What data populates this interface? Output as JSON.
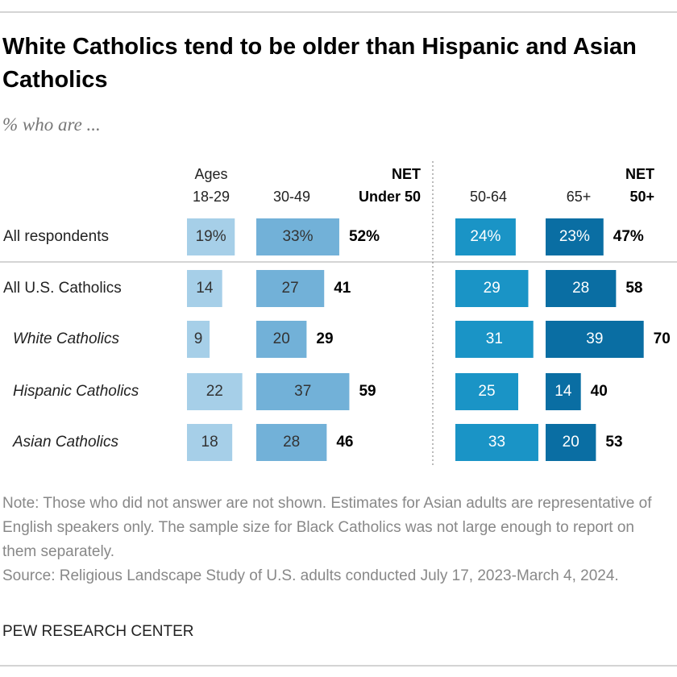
{
  "chart_data": {
    "type": "bar",
    "title": "White Catholics tend to be older than Hispanic and Asian Catholics",
    "subtitle": "% who are ...",
    "categories": [
      "All respondents",
      "All U.S. Catholics",
      "White Catholics",
      "Hispanic Catholics",
      "Asian Catholics"
    ],
    "series": [
      {
        "name": "Ages 18-29",
        "color": "#a6cfe8",
        "values": [
          19,
          14,
          9,
          22,
          18
        ],
        "value_labels": [
          "19%",
          "14",
          "9",
          "22",
          "18"
        ]
      },
      {
        "name": "30-49",
        "color": "#72b1d8",
        "values": [
          33,
          27,
          20,
          37,
          28
        ],
        "value_labels": [
          "33%",
          "27",
          "20",
          "37",
          "28"
        ]
      },
      {
        "name": "NET Under 50",
        "values": [
          52,
          41,
          29,
          59,
          46
        ],
        "value_labels": [
          "52%",
          "41",
          "29",
          "59",
          "46"
        ]
      },
      {
        "name": "50-64",
        "color": "#1a94c6",
        "values": [
          24,
          29,
          31,
          25,
          33
        ],
        "value_labels": [
          "24%",
          "29",
          "31",
          "25",
          "33"
        ]
      },
      {
        "name": "65+",
        "color": "#0a6ea3",
        "values": [
          23,
          28,
          39,
          14,
          20
        ],
        "value_labels": [
          "23%",
          "28",
          "39",
          "14",
          "20"
        ]
      },
      {
        "name": "NET 50+",
        "values": [
          47,
          58,
          70,
          40,
          53
        ],
        "value_labels": [
          "47%",
          "58",
          "70",
          "40",
          "53"
        ]
      }
    ],
    "note": "Note: Those who did not answer are not shown. Estimates for Asian adults are representative of English speakers only. The sample size for Black Catholics was not large enough to report on them separately.",
    "source": "Source: Religious Landscape Study of U.S. adults conducted July 17, 2023-March 4, 2024.",
    "credit": "PEW RESEARCH CENTER"
  }
}
